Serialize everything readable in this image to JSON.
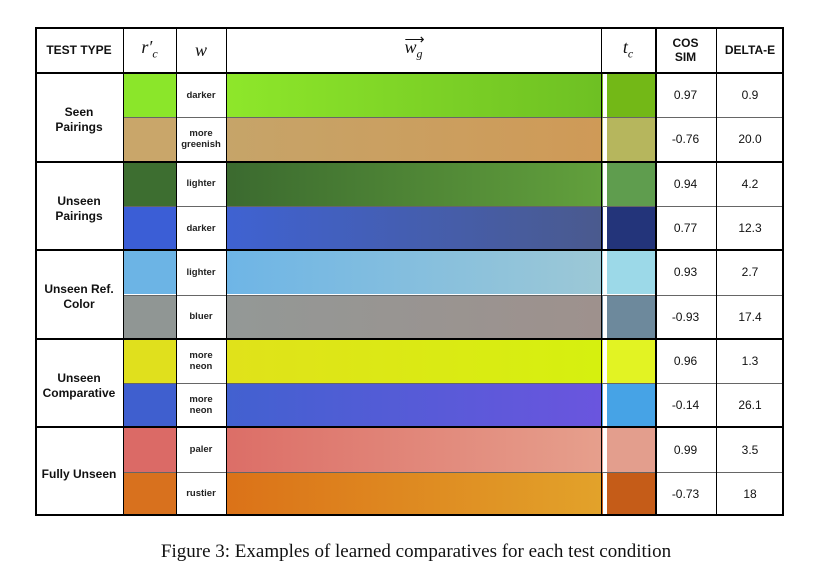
{
  "headers": {
    "test_type": "TEST TYPE",
    "rc_base": "r",
    "rc_prime": "′",
    "rc_sub": "c",
    "w": "w",
    "wg_base": "w",
    "wg_sub": "g",
    "tc_base": "t",
    "tc_sub": "c",
    "cos_line1": "COS",
    "cos_line2": "SIM",
    "delta_e": "DELTA-E"
  },
  "groups": [
    {
      "label_lines": [
        "Seen",
        "Pairings"
      ],
      "rows": [
        {
          "w_lines": [
            "darker"
          ],
          "ref_color": "#8be62a",
          "grad_start": "#8ee72a",
          "grad_end": "#6ec023",
          "target_color": "#73b817",
          "cos_sim": "0.97",
          "delta_e": "0.9"
        },
        {
          "w_lines": [
            "more",
            "greenish"
          ],
          "ref_color": "#c9a66a",
          "grad_start": "#c6a469",
          "grad_end": "#cf9a57",
          "target_color": "#b6b65d",
          "cos_sim": "-0.76",
          "delta_e": "20.0"
        }
      ]
    },
    {
      "label_lines": [
        "Unseen",
        "Pairings"
      ],
      "rows": [
        {
          "w_lines": [
            "lighter"
          ],
          "ref_color": "#3d6e30",
          "grad_start": "#3b6a2f",
          "grad_end": "#62a03c",
          "target_color": "#5f9d4e",
          "cos_sim": "0.94",
          "delta_e": "4.2"
        },
        {
          "w_lines": [
            "darker"
          ],
          "ref_color": "#3b5ed6",
          "grad_start": "#3f62d2",
          "grad_end": "#4a5a8e",
          "target_color": "#23347a",
          "cos_sim": "0.77",
          "delta_e": "12.3"
        }
      ]
    },
    {
      "label_lines": [
        "Unseen Ref.",
        "Color"
      ],
      "rows": [
        {
          "w_lines": [
            "lighter"
          ],
          "ref_color": "#6cb4e5",
          "grad_start": "#6eb5e6",
          "grad_end": "#9cc8d6",
          "target_color": "#9cd9e8",
          "cos_sim": "0.93",
          "delta_e": "2.7"
        },
        {
          "w_lines": [
            "bluer"
          ],
          "ref_color": "#909694",
          "grad_start": "#939896",
          "grad_end": "#9e918d",
          "target_color": "#6d899c",
          "cos_sim": "-0.93",
          "delta_e": "17.4"
        }
      ]
    },
    {
      "label_lines": [
        "Unseen",
        "Comparative"
      ],
      "rows": [
        {
          "w_lines": [
            "more",
            "neon"
          ],
          "ref_color": "#e0e01d",
          "grad_start": "#e0e21a",
          "grad_end": "#d6f00f",
          "target_color": "#e2f323",
          "cos_sim": "0.96",
          "delta_e": "1.3"
        },
        {
          "w_lines": [
            "more",
            "neon"
          ],
          "ref_color": "#3f5fcf",
          "grad_start": "#4261d0",
          "grad_end": "#6a55de",
          "target_color": "#46a3e6",
          "cos_sim": "-0.14",
          "delta_e": "26.1"
        }
      ]
    },
    {
      "label_lines": [
        "Fully Unseen"
      ],
      "rows": [
        {
          "w_lines": [
            "paler"
          ],
          "ref_color": "#db6a66",
          "grad_start": "#dc6e67",
          "grad_end": "#e69f8c",
          "target_color": "#e39e8d",
          "cos_sim": "0.99",
          "delta_e": "3.5"
        },
        {
          "w_lines": [
            "rustier"
          ],
          "ref_color": "#d8711e",
          "grad_start": "#db7218",
          "grad_end": "#e2a22a",
          "target_color": "#c55c18",
          "cos_sim": "-0.73",
          "delta_e": "18"
        }
      ]
    }
  ],
  "caption": "Figure 3: Examples of learned comparatives for each test condition"
}
